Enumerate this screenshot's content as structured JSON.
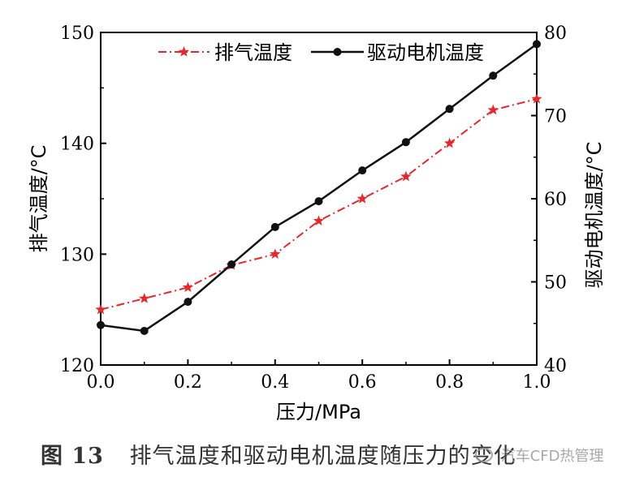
{
  "figure": {
    "caption_num": "图 13",
    "caption_text": "排气温度和驱动电机温度随压力的变化"
  },
  "watermark": "汽车CFD热管理",
  "chart_data": {
    "type": "line",
    "x": [
      0.0,
      0.1,
      0.2,
      0.3,
      0.4,
      0.5,
      0.6,
      0.7,
      0.8,
      0.9,
      1.0
    ],
    "xlabel": "压力/MPa",
    "xlim": [
      0.0,
      1.0
    ],
    "xticks": [
      0.0,
      0.2,
      0.4,
      0.6,
      0.8,
      1.0
    ],
    "xtick_labels": [
      "0.0",
      "0.2",
      "0.4",
      "0.6",
      "0.8",
      "1.0"
    ],
    "ylabel_left": "排气温度/°C",
    "ylim_left": [
      120,
      150
    ],
    "yticks_left": [
      120,
      130,
      140,
      150
    ],
    "ytick_labels_left": [
      "120",
      "130",
      "140",
      "150"
    ],
    "ylabel_right": "驱动电机温度/°C",
    "ylim_right": [
      40,
      80
    ],
    "yticks_right": [
      40,
      50,
      60,
      70,
      80
    ],
    "ytick_labels_right": [
      "40",
      "50",
      "60",
      "70",
      "80"
    ],
    "legend_position": "top",
    "grid": false,
    "series": [
      {
        "name": "排气温度",
        "axis": "left",
        "color": "#e8262b",
        "line_style": "dash-dot",
        "marker": "star",
        "values": [
          125,
          126,
          127,
          129,
          130,
          133,
          135,
          137,
          140,
          143,
          144
        ]
      },
      {
        "name": "驱动电机温度",
        "axis": "right",
        "color": "#111111",
        "line_style": "solid",
        "marker": "circle",
        "values": [
          44.8,
          44.1,
          47.6,
          52.1,
          56.6,
          59.7,
          63.4,
          66.8,
          70.8,
          74.8,
          78.6
        ]
      }
    ]
  }
}
